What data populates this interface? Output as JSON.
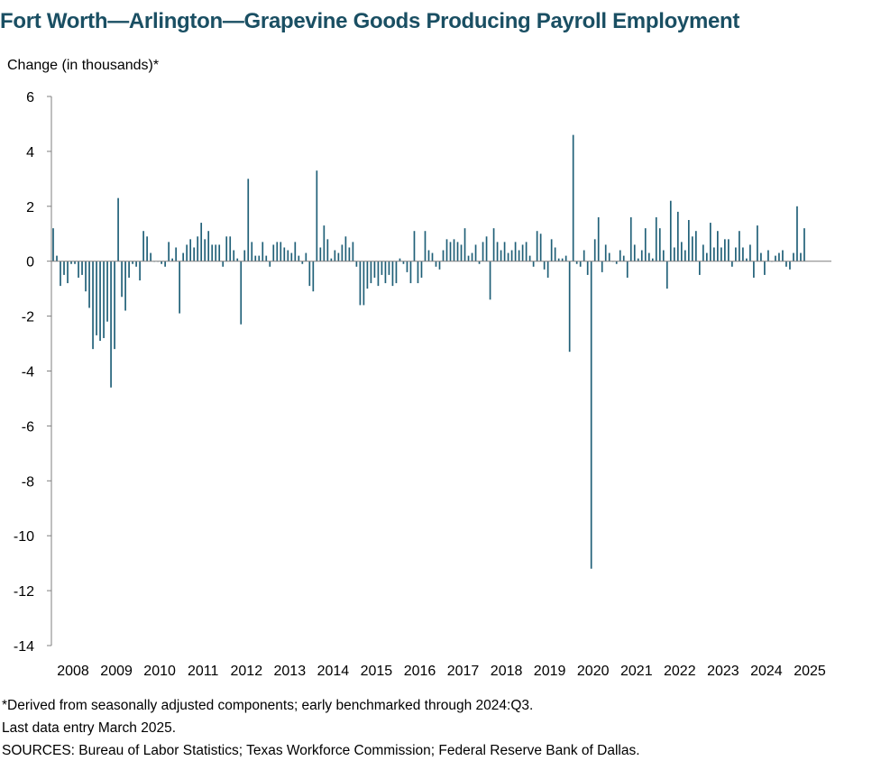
{
  "title": "Fort Worth—Arlington—Grapevine Goods Producing Payroll Employment",
  "colors": {
    "bar": "#1f5f77",
    "title": "#1a4f63",
    "axis": "#7f7f7f"
  },
  "notes": {
    "footnote": "*Derived from seasonally adjusted components; early benchmarked through 2024:Q3.",
    "last_entry": "Last data entry March 2025.",
    "sources": "SOURCES: Bureau of Labor Statistics; Texas Workforce Commission; Federal Reserve Bank of Dallas."
  },
  "chart_data": {
    "type": "bar",
    "title": "Fort Worth—Arlington—Grapevine Goods Producing Payroll Employment",
    "ylabel": "Change (in thousands)*",
    "xlabel": "",
    "ylim": [
      -14,
      6
    ],
    "yticks": [
      6,
      4,
      2,
      0,
      -2,
      -4,
      -6,
      -8,
      -10,
      -12,
      -14
    ],
    "yticklabels": [
      "6",
      "4",
      "2",
      "0",
      "-2",
      "-4",
      "-6",
      "-8",
      "-10",
      "-12",
      "-14"
    ],
    "xticklabels": [
      "2008",
      "2009",
      "2010",
      "2011",
      "2012",
      "2013",
      "2014",
      "2015",
      "2016",
      "2017",
      "2018",
      "2019",
      "2020",
      "2021",
      "2022",
      "2023",
      "2024",
      "2025"
    ],
    "x_start": "2008-01",
    "x_end": "2025-03",
    "grid": false,
    "legend": "none",
    "series": [
      {
        "values": [
          1.2,
          0.2,
          -0.9,
          -0.5,
          -0.8,
          -0.1,
          -0.1,
          -0.6,
          -0.5,
          -1.1,
          -1.7,
          -3.2,
          -2.7,
          -2.9,
          -2.8,
          -2.2,
          -4.6,
          -3.2,
          2.3,
          -1.3,
          -1.8,
          -0.6,
          -0.1,
          -0.2,
          -0.7,
          1.1,
          0.9,
          0.3,
          0.0,
          0.0,
          -0.1,
          -0.2,
          0.7,
          0.1,
          0.5,
          -1.9,
          0.3,
          0.6,
          0.8,
          0.5,
          0.9,
          1.4,
          0.8,
          1.1,
          0.6,
          0.6,
          0.6,
          -0.2,
          0.9,
          0.9,
          0.4,
          0.1,
          -2.3,
          0.4,
          3.0,
          0.7,
          0.2,
          0.2,
          0.7,
          0.2,
          -0.2,
          0.6,
          0.7,
          0.7,
          0.5,
          0.4,
          0.3,
          0.7,
          0.2,
          -0.1,
          0.3,
          -0.9,
          -1.1,
          3.3,
          0.5,
          1.3,
          0.8,
          0.1,
          0.4,
          0.3,
          0.6,
          0.9,
          0.5,
          0.7,
          -0.2,
          -1.6,
          -1.6,
          -1.0,
          -0.8,
          -0.6,
          -0.9,
          -0.5,
          -0.8,
          -0.5,
          -0.9,
          -0.8,
          0.1,
          -0.1,
          -0.4,
          -0.8,
          1.1,
          -0.8,
          -0.6,
          1.1,
          0.4,
          0.3,
          -0.2,
          -0.3,
          0.4,
          0.8,
          0.7,
          0.8,
          0.7,
          0.6,
          1.2,
          0.2,
          0.3,
          0.6,
          -0.1,
          0.7,
          0.9,
          -1.4,
          1.2,
          0.7,
          0.4,
          0.7,
          0.3,
          0.4,
          0.7,
          0.4,
          0.6,
          0.7,
          0.2,
          -0.2,
          1.1,
          1.0,
          -0.3,
          -0.6,
          0.8,
          0.5,
          0.1,
          0.1,
          0.2,
          -3.3,
          4.6,
          -0.1,
          -0.2,
          0.4,
          -0.5,
          -11.2,
          0.8,
          1.6,
          -0.4,
          0.6,
          0.3,
          0.0,
          -0.1,
          0.4,
          0.2,
          -0.6,
          1.6,
          0.6,
          0.1,
          0.4,
          1.2,
          0.3,
          0.1,
          1.6,
          1.2,
          0.4,
          -1.0,
          2.2,
          0.5,
          1.8,
          0.7,
          0.4,
          1.5,
          0.9,
          1.1,
          -0.5,
          0.6,
          0.3,
          1.4,
          0.5,
          1.1,
          0.5,
          0.8,
          0.8,
          -0.2,
          0.5,
          1.1,
          0.5,
          0.1,
          0.6,
          -0.6,
          1.3,
          0.3,
          -0.5,
          0.4,
          0.0,
          0.2,
          0.3,
          0.4,
          -0.2,
          -0.3,
          0.3,
          2.0,
          0.3,
          1.2
        ]
      }
    ]
  }
}
